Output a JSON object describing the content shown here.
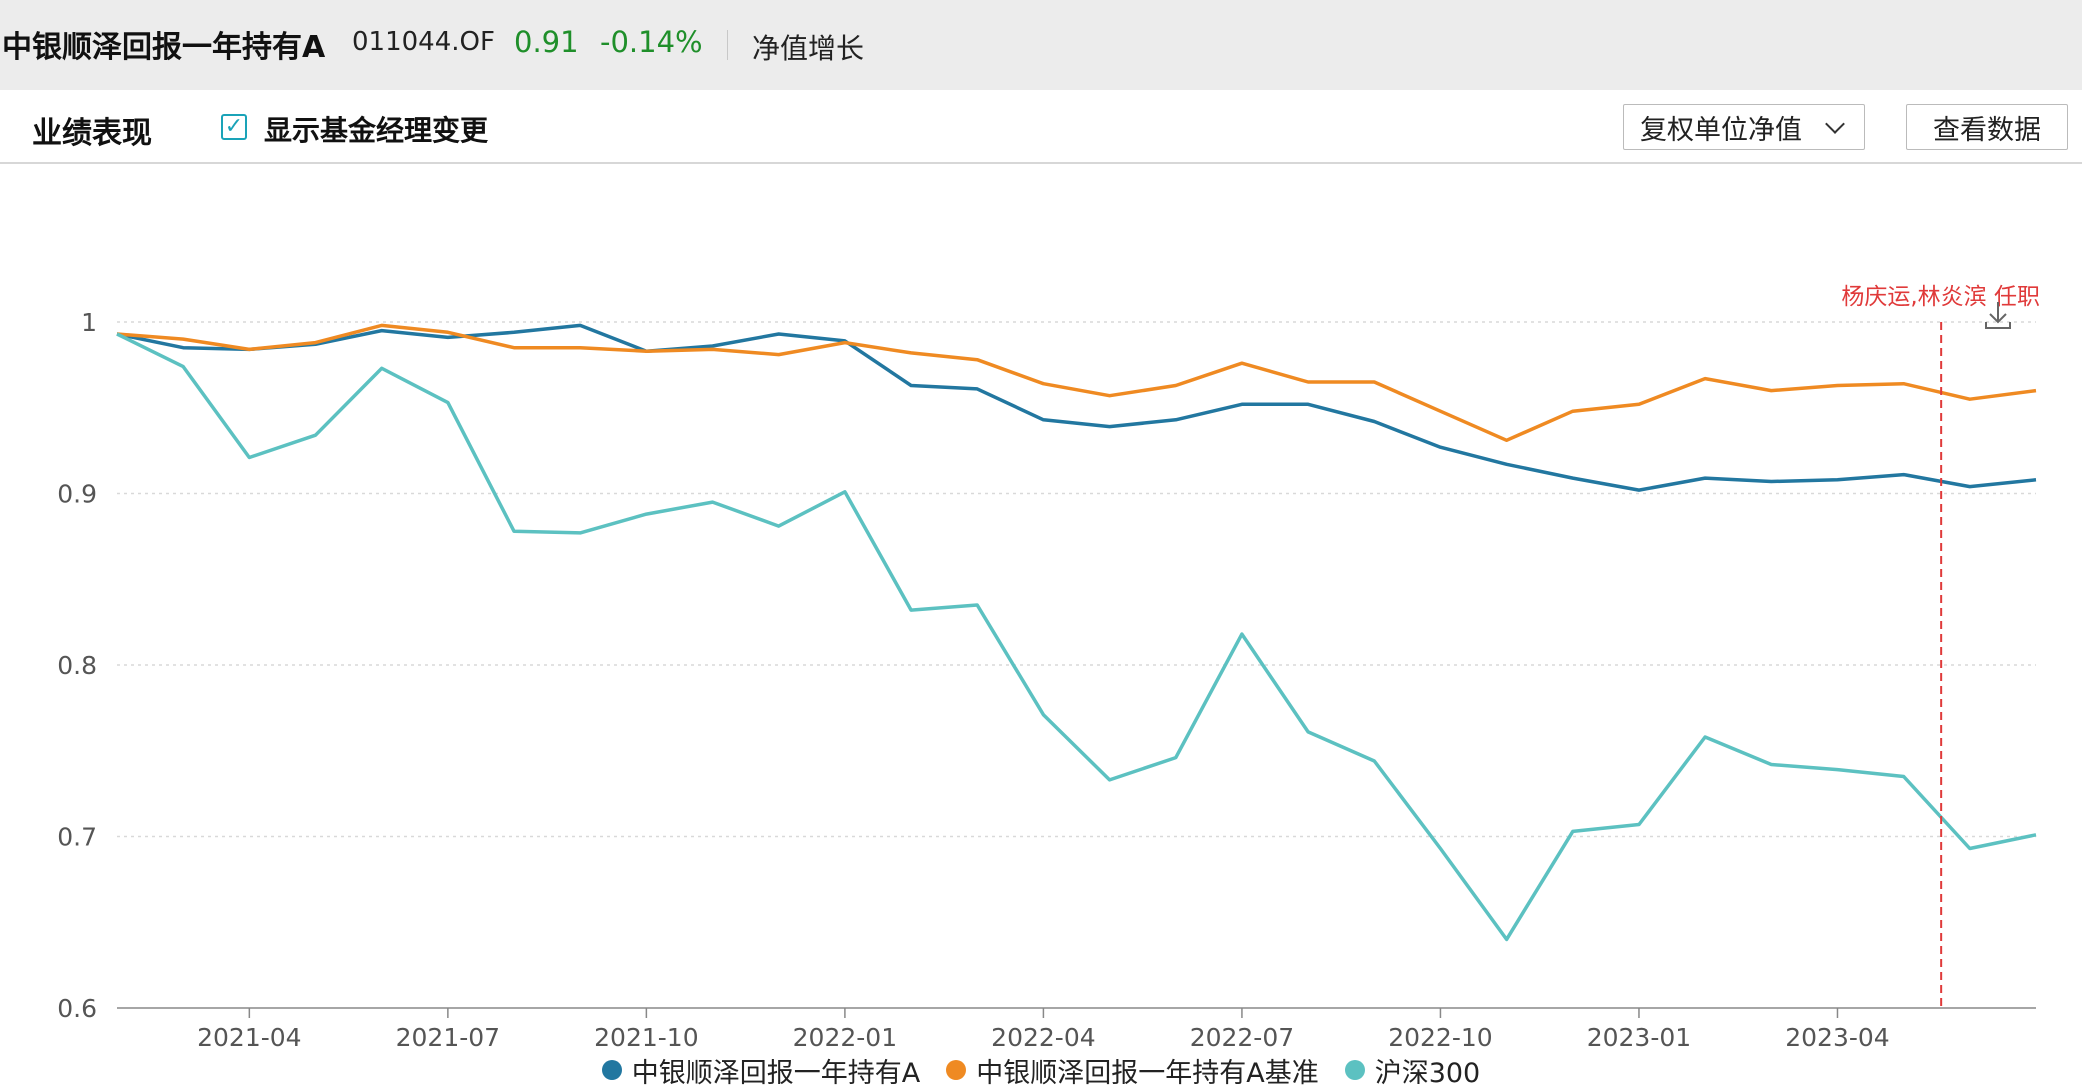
{
  "header": {
    "fund_name": "中银顺泽回报一年持有A",
    "fund_code": "011044.OF",
    "nav": "0.91",
    "change": "-0.14%",
    "growth_label": "净值增长"
  },
  "toolbar": {
    "section_title": "业绩表现",
    "show_manager_label": "显示基金经理变更",
    "show_manager_checked": true,
    "nav_select_label": "复权单位净值",
    "view_data_label": "查看数据"
  },
  "chart_data": {
    "type": "line",
    "x": [
      "2021-02",
      "2021-03",
      "2021-04",
      "2021-05",
      "2021-06",
      "2021-07",
      "2021-08",
      "2021-09",
      "2021-10",
      "2021-11",
      "2021-12",
      "2022-01",
      "2022-02",
      "2022-03",
      "2022-04",
      "2022-05",
      "2022-06",
      "2022-07",
      "2022-08",
      "2022-09",
      "2022-10",
      "2022-11",
      "2022-12",
      "2023-01",
      "2023-02",
      "2023-03",
      "2023-04",
      "2023-05",
      "2023-06",
      "2023-07"
    ],
    "xticks": [
      "2021-04",
      "2021-07",
      "2021-10",
      "2022-01",
      "2022-04",
      "2022-07",
      "2022-10",
      "2023-01",
      "2023-04"
    ],
    "ylim": [
      0.6,
      1.0
    ],
    "yticks": [
      0.6,
      0.7,
      0.8,
      0.9,
      1
    ],
    "grid": true,
    "legend_position": "bottom-center",
    "series": [
      {
        "name": "中银顺泽回报一年持有A",
        "color": "#2277a0",
        "values": [
          0.993,
          0.985,
          0.984,
          0.987,
          0.995,
          0.991,
          0.994,
          0.998,
          0.983,
          0.986,
          0.993,
          0.989,
          0.963,
          0.961,
          0.943,
          0.939,
          0.943,
          0.952,
          0.952,
          0.942,
          0.927,
          0.917,
          0.909,
          0.902,
          0.909,
          0.907,
          0.908,
          0.911,
          0.904,
          0.908
        ]
      },
      {
        "name": "中银顺泽回报一年持有A基准",
        "color": "#ef8a22",
        "values": [
          0.993,
          0.99,
          0.984,
          0.988,
          0.998,
          0.994,
          0.985,
          0.985,
          0.983,
          0.984,
          0.981,
          0.988,
          0.982,
          0.978,
          0.964,
          0.957,
          0.963,
          0.976,
          0.965,
          0.965,
          0.948,
          0.931,
          0.948,
          0.952,
          0.967,
          0.96,
          0.963,
          0.964,
          0.955,
          0.96
        ]
      },
      {
        "name": "沪深300",
        "color": "#5cc1c1",
        "values": [
          0.993,
          0.974,
          0.921,
          0.934,
          0.973,
          0.953,
          0.878,
          0.877,
          0.888,
          0.895,
          0.881,
          0.901,
          0.832,
          0.835,
          0.771,
          0.733,
          0.746,
          0.818,
          0.761,
          0.744,
          0.693,
          0.64,
          0.703,
          0.707,
          0.758,
          0.742,
          0.739,
          0.735,
          0.693,
          0.701
        ]
      }
    ],
    "annotations": [
      {
        "label": "杨庆运,林炎滨 任职",
        "x": "2023-05-18",
        "color": "#e03a3a",
        "style": "dashed"
      }
    ]
  }
}
